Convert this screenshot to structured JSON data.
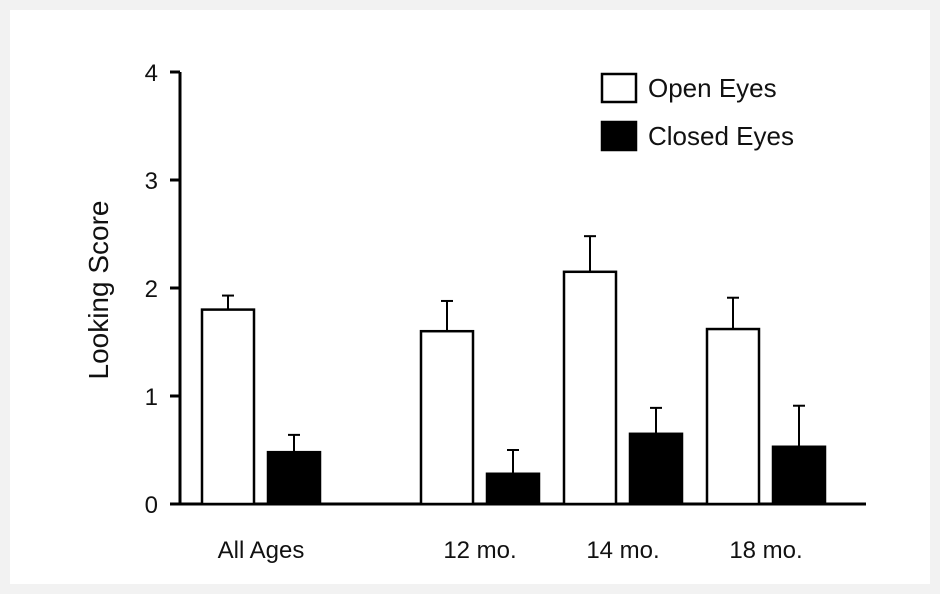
{
  "chart_data": {
    "type": "bar",
    "title": "",
    "xlabel": "",
    "ylabel": "Looking Score",
    "ylim": [
      0,
      4
    ],
    "yticks": [
      "0",
      "1",
      "2",
      "3",
      "4"
    ],
    "categories": [
      "All Ages",
      "12 mo.",
      "14 mo.",
      "18 mo."
    ],
    "series": [
      {
        "name": "Open Eyes",
        "color": "#ffffff",
        "values": [
          1.8,
          1.6,
          2.15,
          1.62
        ],
        "errors": [
          0.13,
          0.28,
          0.33,
          0.29
        ]
      },
      {
        "name": "Closed Eyes",
        "color": "#000000",
        "values": [
          0.48,
          0.28,
          0.65,
          0.53
        ],
        "errors": [
          0.16,
          0.22,
          0.24,
          0.38
        ]
      }
    ],
    "error_bars": "upper",
    "legend": "top-right",
    "grid": false
  }
}
